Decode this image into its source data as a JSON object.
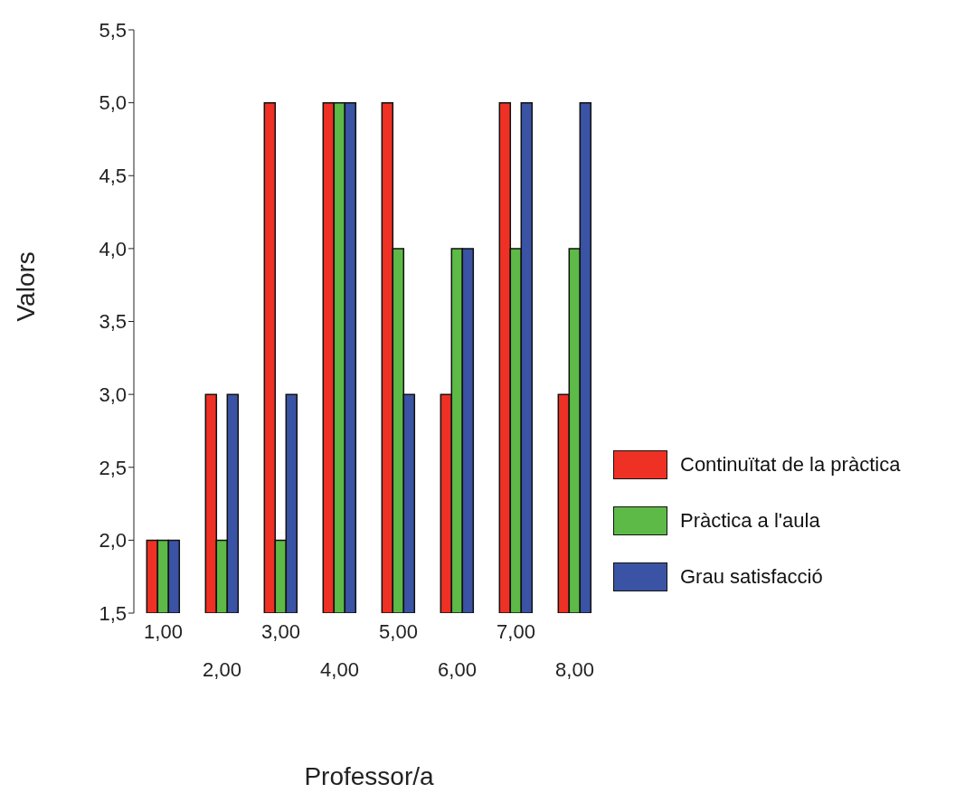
{
  "chart_data": {
    "type": "bar",
    "xlabel": "Professor/a",
    "ylabel": "Valors",
    "categories": [
      "1,00",
      "2,00",
      "3,00",
      "4,00",
      "5,00",
      "6,00",
      "7,00",
      "8,00"
    ],
    "series": [
      {
        "name": "Continuïtat de la pràctica",
        "color": "#ee3124",
        "values": [
          2,
          3,
          5,
          5,
          5,
          3,
          5,
          3
        ]
      },
      {
        "name": "Pràctica a l'aula",
        "color": "#5dba47",
        "values": [
          2,
          2,
          2,
          5,
          4,
          4,
          4,
          4
        ]
      },
      {
        "name": "Grau satisfacció",
        "color": "#3a53a4",
        "values": [
          2,
          3,
          3,
          5,
          3,
          4,
          5,
          5
        ]
      }
    ],
    "ylim": [
      1.5,
      5.5
    ],
    "yticks": [
      {
        "value": 1.5,
        "label": "1,5"
      },
      {
        "value": 2,
        "label": "2,0"
      },
      {
        "value": 2.5,
        "label": "2,5"
      },
      {
        "value": 3,
        "label": "3,0"
      },
      {
        "value": 3.5,
        "label": "3,5"
      },
      {
        "value": 4,
        "label": "4,0"
      },
      {
        "value": 4.5,
        "label": "4,5"
      },
      {
        "value": 5,
        "label": "5,0"
      },
      {
        "value": 5.5,
        "label": "5,5"
      }
    ],
    "grid": false,
    "legend": "right"
  }
}
